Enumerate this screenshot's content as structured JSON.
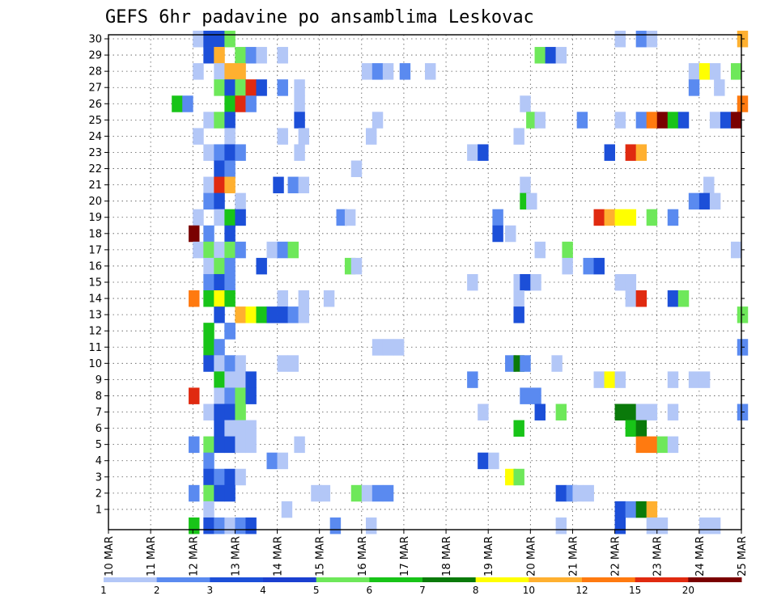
{
  "chart_data": {
    "type": "heatmap",
    "title": "GEFS 6hr padavine po ansamblima Leskovac",
    "xlabel": "",
    "ylabel": "",
    "x_ticks": [
      "10 MAR",
      "11 MAR",
      "12 MAR",
      "13 MAR",
      "14 MAR",
      "15 MAR",
      "16 MAR",
      "17 MAR",
      "18 MAR",
      "19 MAR",
      "20 MAR",
      "21 MAR",
      "22 MAR",
      "23 MAR",
      "24 MAR",
      "25 MAR"
    ],
    "xlim_days": [
      10,
      25
    ],
    "y_ticks": [
      1,
      2,
      3,
      4,
      5,
      6,
      7,
      8,
      9,
      10,
      11,
      12,
      13,
      14,
      15,
      16,
      17,
      18,
      19,
      20,
      21,
      22,
      23,
      24,
      25,
      26,
      27,
      28,
      29,
      30
    ],
    "ylim": [
      0,
      30
    ],
    "grid": true,
    "cell_width_days": 0.25,
    "colorbar": {
      "labels": [
        "1",
        "2",
        "3",
        "4",
        "5",
        "6",
        "7",
        "8",
        "10",
        "12",
        "15",
        "20"
      ],
      "colors": [
        "#b3c7f7",
        "#5a8af0",
        "#1c4fd8",
        "#1a3fd0",
        "#6ee85a",
        "#18c418",
        "#0a7a0a",
        "#ffff00",
        "#ffb030",
        "#ff7a10",
        "#e02a10",
        "#7a0000"
      ]
    },
    "values_note": "cells: [member, start_day, level_index]",
    "cells": [
      [
        30,
        12.0,
        0
      ],
      [
        30,
        12.25,
        2
      ],
      [
        30,
        12.5,
        2
      ],
      [
        30,
        12.75,
        4
      ],
      [
        30,
        22.0,
        0
      ],
      [
        30,
        22.5,
        1
      ],
      [
        30,
        22.75,
        0
      ],
      [
        30,
        24.9,
        8
      ],
      [
        29,
        12.25,
        2
      ],
      [
        29,
        12.5,
        8
      ],
      [
        29,
        13.0,
        4
      ],
      [
        29,
        13.25,
        1
      ],
      [
        29,
        13.5,
        0
      ],
      [
        29,
        14.0,
        0
      ],
      [
        29,
        20.1,
        4
      ],
      [
        29,
        20.35,
        2
      ],
      [
        29,
        20.6,
        0
      ],
      [
        28,
        12.0,
        0
      ],
      [
        28,
        12.5,
        0
      ],
      [
        28,
        12.75,
        8
      ],
      [
        28,
        13.0,
        8
      ],
      [
        28,
        16.0,
        0
      ],
      [
        28,
        16.25,
        1
      ],
      [
        28,
        16.5,
        0
      ],
      [
        28,
        16.9,
        1
      ],
      [
        28,
        17.5,
        0
      ],
      [
        28,
        23.75,
        0
      ],
      [
        28,
        24.0,
        7
      ],
      [
        28,
        24.25,
        0
      ],
      [
        28,
        24.75,
        4
      ],
      [
        27,
        12.5,
        4
      ],
      [
        27,
        12.75,
        2
      ],
      [
        27,
        13.0,
        4
      ],
      [
        27,
        13.25,
        10
      ],
      [
        27,
        13.5,
        2
      ],
      [
        27,
        14.0,
        1
      ],
      [
        27,
        14.4,
        0
      ],
      [
        27,
        23.75,
        1
      ],
      [
        27,
        24.35,
        0
      ],
      [
        26,
        11.5,
        5
      ],
      [
        26,
        11.75,
        1
      ],
      [
        26,
        12.75,
        5
      ],
      [
        26,
        13.0,
        10
      ],
      [
        26,
        13.25,
        1
      ],
      [
        26,
        14.4,
        0
      ],
      [
        26,
        19.75,
        0
      ],
      [
        26,
        24.9,
        9
      ],
      [
        25,
        12.25,
        0
      ],
      [
        25,
        12.5,
        4
      ],
      [
        25,
        12.75,
        2
      ],
      [
        25,
        14.4,
        2
      ],
      [
        25,
        16.25,
        0
      ],
      [
        25,
        19.9,
        4
      ],
      [
        25,
        20.1,
        0
      ],
      [
        25,
        21.1,
        1
      ],
      [
        25,
        22.0,
        0
      ],
      [
        25,
        22.5,
        1
      ],
      [
        25,
        22.75,
        9
      ],
      [
        25,
        23.0,
        11
      ],
      [
        25,
        23.25,
        5
      ],
      [
        25,
        23.5,
        2
      ],
      [
        25,
        24.25,
        0
      ],
      [
        25,
        24.5,
        2
      ],
      [
        25,
        24.75,
        11
      ],
      [
        24,
        12.0,
        0
      ],
      [
        24,
        12.75,
        0
      ],
      [
        24,
        14.0,
        0
      ],
      [
        24,
        14.5,
        0
      ],
      [
        24,
        16.1,
        0
      ],
      [
        24,
        19.6,
        0
      ],
      [
        23,
        12.25,
        0
      ],
      [
        23,
        12.5,
        1
      ],
      [
        23,
        12.75,
        2
      ],
      [
        23,
        13.0,
        1
      ],
      [
        23,
        14.4,
        0
      ],
      [
        23,
        18.5,
        0
      ],
      [
        23,
        18.75,
        2
      ],
      [
        23,
        21.75,
        2
      ],
      [
        23,
        22.25,
        10
      ],
      [
        23,
        22.5,
        8
      ],
      [
        22,
        12.5,
        2
      ],
      [
        22,
        12.75,
        1
      ],
      [
        22,
        15.75,
        0
      ],
      [
        21,
        12.25,
        0
      ],
      [
        21,
        12.5,
        10
      ],
      [
        21,
        12.75,
        8
      ],
      [
        21,
        13.9,
        2
      ],
      [
        21,
        14.25,
        1
      ],
      [
        21,
        14.5,
        0
      ],
      [
        21,
        19.75,
        0
      ],
      [
        21,
        24.1,
        0
      ],
      [
        20,
        12.25,
        1
      ],
      [
        20,
        12.5,
        2
      ],
      [
        20,
        13.0,
        0
      ],
      [
        20,
        19.75,
        5
      ],
      [
        20,
        19.9,
        0
      ],
      [
        20,
        23.75,
        1
      ],
      [
        20,
        24.0,
        2
      ],
      [
        20,
        24.25,
        0
      ],
      [
        19,
        12.0,
        0
      ],
      [
        19,
        12.5,
        0
      ],
      [
        19,
        12.75,
        5
      ],
      [
        19,
        13.0,
        2
      ],
      [
        19,
        15.4,
        1
      ],
      [
        19,
        15.6,
        0
      ],
      [
        19,
        19.1,
        1
      ],
      [
        19,
        21.5,
        10
      ],
      [
        19,
        21.75,
        8
      ],
      [
        19,
        22.0,
        7
      ],
      [
        19,
        22.25,
        7
      ],
      [
        19,
        22.75,
        4
      ],
      [
        19,
        23.25,
        1
      ],
      [
        18,
        11.9,
        11
      ],
      [
        18,
        12.25,
        1
      ],
      [
        18,
        12.75,
        2
      ],
      [
        18,
        19.1,
        2
      ],
      [
        18,
        19.4,
        0
      ],
      [
        17,
        12.0,
        0
      ],
      [
        17,
        12.25,
        4
      ],
      [
        17,
        12.5,
        0
      ],
      [
        17,
        12.75,
        4
      ],
      [
        17,
        13.0,
        1
      ],
      [
        17,
        13.75,
        0
      ],
      [
        17,
        14.0,
        1
      ],
      [
        17,
        14.25,
        4
      ],
      [
        17,
        20.1,
        0
      ],
      [
        17,
        20.75,
        4
      ],
      [
        17,
        24.75,
        0
      ],
      [
        16,
        12.25,
        0
      ],
      [
        16,
        12.5,
        4
      ],
      [
        16,
        12.75,
        1
      ],
      [
        16,
        13.5,
        2
      ],
      [
        16,
        15.6,
        4
      ],
      [
        16,
        15.75,
        0
      ],
      [
        16,
        20.75,
        0
      ],
      [
        16,
        21.25,
        1
      ],
      [
        16,
        21.5,
        2
      ],
      [
        15,
        12.25,
        1
      ],
      [
        15,
        12.5,
        2
      ],
      [
        15,
        12.75,
        1
      ],
      [
        15,
        18.5,
        0
      ],
      [
        15,
        19.6,
        0
      ],
      [
        15,
        19.75,
        2
      ],
      [
        15,
        20.0,
        0
      ],
      [
        15,
        22.0,
        0
      ],
      [
        15,
        22.25,
        0
      ],
      [
        14,
        11.9,
        9
      ],
      [
        14,
        12.25,
        5
      ],
      [
        14,
        12.5,
        7
      ],
      [
        14,
        12.75,
        5
      ],
      [
        14,
        14.0,
        0
      ],
      [
        14,
        14.5,
        0
      ],
      [
        14,
        15.1,
        0
      ],
      [
        14,
        19.6,
        0
      ],
      [
        14,
        22.25,
        0
      ],
      [
        14,
        22.5,
        10
      ],
      [
        14,
        23.25,
        2
      ],
      [
        14,
        23.5,
        4
      ],
      [
        13,
        12.5,
        2
      ],
      [
        12,
        12.75,
        1
      ],
      [
        13,
        13.0,
        8
      ],
      [
        13,
        13.25,
        7
      ],
      [
        13,
        13.5,
        5
      ],
      [
        13,
        13.75,
        2
      ],
      [
        13,
        14.0,
        2
      ],
      [
        13,
        14.25,
        1
      ],
      [
        13,
        14.5,
        0
      ],
      [
        13,
        19.6,
        2
      ],
      [
        13,
        24.9,
        4
      ],
      [
        12,
        12.25,
        5
      ],
      [
        12,
        12.75,
        1
      ],
      [
        11,
        12.25,
        5
      ],
      [
        11,
        12.5,
        1
      ],
      [
        11,
        16.25,
        0
      ],
      [
        11,
        16.5,
        0
      ],
      [
        11,
        16.75,
        0
      ],
      [
        11,
        24.9,
        1
      ],
      [
        10,
        12.25,
        2
      ],
      [
        10,
        12.5,
        0
      ],
      [
        10,
        12.75,
        1
      ],
      [
        10,
        13.0,
        0
      ],
      [
        10,
        14.0,
        0
      ],
      [
        10,
        14.25,
        0
      ],
      [
        10,
        19.4,
        1
      ],
      [
        10,
        19.6,
        6
      ],
      [
        10,
        19.75,
        1
      ],
      [
        10,
        20.5,
        0
      ],
      [
        9,
        12.5,
        5
      ],
      [
        9,
        12.75,
        0
      ],
      [
        9,
        13.0,
        0
      ],
      [
        9,
        13.25,
        2
      ],
      [
        9,
        18.5,
        1
      ],
      [
        9,
        21.5,
        0
      ],
      [
        9,
        21.75,
        7
      ],
      [
        9,
        22.0,
        0
      ],
      [
        9,
        23.25,
        0
      ],
      [
        9,
        23.75,
        0
      ],
      [
        9,
        24.0,
        0
      ],
      [
        8,
        11.9,
        10
      ],
      [
        8,
        12.5,
        0
      ],
      [
        8,
        12.75,
        1
      ],
      [
        8,
        13.0,
        4
      ],
      [
        8,
        13.25,
        2
      ],
      [
        8,
        19.75,
        1
      ],
      [
        8,
        20.0,
        1
      ],
      [
        7,
        12.25,
        0
      ],
      [
        7,
        12.5,
        2
      ],
      [
        7,
        12.75,
        2
      ],
      [
        7,
        13.0,
        4
      ],
      [
        7,
        18.75,
        0
      ],
      [
        7,
        20.1,
        2
      ],
      [
        7,
        20.6,
        4
      ],
      [
        7,
        22.0,
        6
      ],
      [
        7,
        22.25,
        6
      ],
      [
        7,
        22.5,
        0
      ],
      [
        7,
        22.75,
        0
      ],
      [
        7,
        23.25,
        0
      ],
      [
        7,
        24.9,
        1
      ],
      [
        6,
        12.5,
        2
      ],
      [
        6,
        12.75,
        0
      ],
      [
        6,
        13.0,
        0
      ],
      [
        6,
        13.25,
        0
      ],
      [
        6,
        19.6,
        5
      ],
      [
        6,
        22.25,
        5
      ],
      [
        6,
        22.5,
        6
      ],
      [
        5,
        11.9,
        1
      ],
      [
        5,
        12.25,
        4
      ],
      [
        5,
        12.5,
        2
      ],
      [
        5,
        12.75,
        2
      ],
      [
        5,
        13.0,
        0
      ],
      [
        5,
        13.25,
        0
      ],
      [
        5,
        14.4,
        0
      ],
      [
        5,
        22.5,
        9
      ],
      [
        5,
        22.75,
        9
      ],
      [
        5,
        23.0,
        4
      ],
      [
        5,
        23.25,
        0
      ],
      [
        4,
        12.25,
        1
      ],
      [
        4,
        13.75,
        1
      ],
      [
        4,
        14.0,
        0
      ],
      [
        4,
        18.75,
        2
      ],
      [
        4,
        19.0,
        0
      ],
      [
        3,
        12.25,
        2
      ],
      [
        3,
        12.5,
        1
      ],
      [
        3,
        12.75,
        2
      ],
      [
        3,
        13.0,
        0
      ],
      [
        3,
        19.4,
        7
      ],
      [
        3,
        19.6,
        4
      ],
      [
        2,
        11.9,
        1
      ],
      [
        2,
        12.25,
        4
      ],
      [
        2,
        12.5,
        2
      ],
      [
        2,
        12.75,
        2
      ],
      [
        2,
        14.8,
        0
      ],
      [
        2,
        15.0,
        0
      ],
      [
        2,
        15.75,
        4
      ],
      [
        2,
        16.0,
        0
      ],
      [
        2,
        16.25,
        1
      ],
      [
        2,
        16.5,
        1
      ],
      [
        2,
        20.6,
        2
      ],
      [
        2,
        20.85,
        1
      ],
      [
        2,
        21.0,
        0
      ],
      [
        2,
        21.25,
        0
      ],
      [
        1,
        12.25,
        0
      ],
      [
        1,
        14.1,
        0
      ],
      [
        1,
        22.0,
        2
      ],
      [
        1,
        22.25,
        1
      ],
      [
        1,
        22.5,
        6
      ],
      [
        1,
        22.75,
        8
      ],
      [
        0,
        11.9,
        5
      ],
      [
        0,
        12.25,
        2
      ],
      [
        0,
        12.5,
        1
      ],
      [
        0,
        12.75,
        0
      ],
      [
        0,
        13.0,
        1
      ],
      [
        0,
        13.25,
        2
      ],
      [
        0,
        15.25,
        1
      ],
      [
        0,
        16.1,
        0
      ],
      [
        0,
        20.6,
        0
      ],
      [
        0,
        22.0,
        2
      ],
      [
        0,
        22.75,
        0
      ],
      [
        0,
        23.0,
        0
      ],
      [
        0,
        24.0,
        0
      ],
      [
        0,
        24.25,
        0
      ]
    ]
  }
}
